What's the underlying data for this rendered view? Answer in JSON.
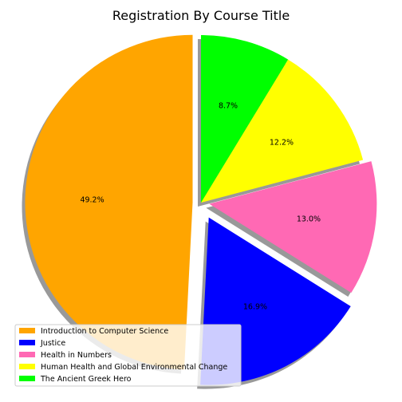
{
  "chart_data": {
    "type": "pie",
    "title": "Registration By Course Title",
    "categories": [
      "Introduction to Computer Science",
      "Justice",
      "Health in Numbers",
      "Human Health and Global Environmental Change",
      "The Ancient Greek Hero"
    ],
    "values": [
      49.2,
      16.9,
      13.0,
      12.2,
      8.7
    ],
    "labels": [
      "49.2%",
      "16.9%",
      "13.0%",
      "12.2%",
      "8.7%"
    ],
    "colors": [
      "#FFA500",
      "#0000FF",
      "#FF69B4",
      "#FFFF00",
      "#00FF00"
    ],
    "explode": [
      0.05,
      0.1,
      0.05,
      0,
      0
    ],
    "start_angle_deg": 90,
    "shadow": true,
    "legend_position": "lower-left"
  }
}
